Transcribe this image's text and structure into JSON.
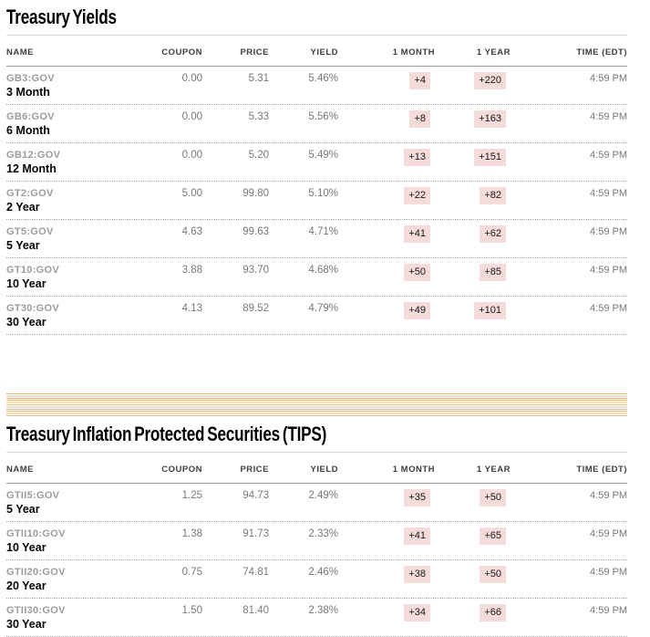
{
  "colors": {
    "badge_background": "#f6dbdb",
    "divider_stripe": "#ebbc81",
    "ticker_gray": "#9c9c9c",
    "value_gray": "#77787b"
  },
  "sections": [
    {
      "title": "Treasury Yields",
      "columns": [
        "NAME",
        "COUPON",
        "PRICE",
        "YIELD",
        "1 MONTH",
        "1 YEAR",
        "TIME (EDT)"
      ],
      "rows": [
        {
          "ticker": "GB3:GOV",
          "term": "3 Month",
          "coupon": "0.00",
          "price": "5.31",
          "yield": "5.46%",
          "one_month": "+4",
          "one_year": "+220",
          "time": "4:59 PM"
        },
        {
          "ticker": "GB6:GOV",
          "term": "6 Month",
          "coupon": "0.00",
          "price": "5.33",
          "yield": "5.56%",
          "one_month": "+8",
          "one_year": "+163",
          "time": "4:59 PM"
        },
        {
          "ticker": "GB12:GOV",
          "term": "12 Month",
          "coupon": "0.00",
          "price": "5.20",
          "yield": "5.49%",
          "one_month": "+13",
          "one_year": "+151",
          "time": "4:59 PM"
        },
        {
          "ticker": "GT2:GOV",
          "term": "2 Year",
          "coupon": "5.00",
          "price": "99.80",
          "yield": "5.10%",
          "one_month": "+22",
          "one_year": "+82",
          "time": "4:59 PM"
        },
        {
          "ticker": "GT5:GOV",
          "term": "5 Year",
          "coupon": "4.63",
          "price": "99.63",
          "yield": "4.71%",
          "one_month": "+41",
          "one_year": "+62",
          "time": "4:59 PM"
        },
        {
          "ticker": "GT10:GOV",
          "term": "10 Year",
          "coupon": "3.88",
          "price": "93.70",
          "yield": "4.68%",
          "one_month": "+50",
          "one_year": "+85",
          "time": "4:59 PM"
        },
        {
          "ticker": "GT30:GOV",
          "term": "30 Year",
          "coupon": "4.13",
          "price": "89.52",
          "yield": "4.79%",
          "one_month": "+49",
          "one_year": "+101",
          "time": "4:59 PM"
        }
      ]
    },
    {
      "title": "Treasury Inflation Protected Securities (TIPS)",
      "columns": [
        "NAME",
        "COUPON",
        "PRICE",
        "YIELD",
        "1 MONTH",
        "1 YEAR",
        "TIME (EDT)"
      ],
      "rows": [
        {
          "ticker": "GTII5:GOV",
          "term": "5 Year",
          "coupon": "1.25",
          "price": "94.73",
          "yield": "2.49%",
          "one_month": "+35",
          "one_year": "+50",
          "time": "4:59 PM"
        },
        {
          "ticker": "GTII10:GOV",
          "term": "10 Year",
          "coupon": "1.38",
          "price": "91.73",
          "yield": "2.33%",
          "one_month": "+41",
          "one_year": "+65",
          "time": "4:59 PM"
        },
        {
          "ticker": "GTII20:GOV",
          "term": "20 Year",
          "coupon": "0.75",
          "price": "74.81",
          "yield": "2.46%",
          "one_month": "+38",
          "one_year": "+50",
          "time": "4:59 PM"
        },
        {
          "ticker": "GTII30:GOV",
          "term": "30 Year",
          "coupon": "1.50",
          "price": "81.40",
          "yield": "2.38%",
          "one_month": "+34",
          "one_year": "+66",
          "time": "4:59 PM"
        }
      ]
    }
  ]
}
